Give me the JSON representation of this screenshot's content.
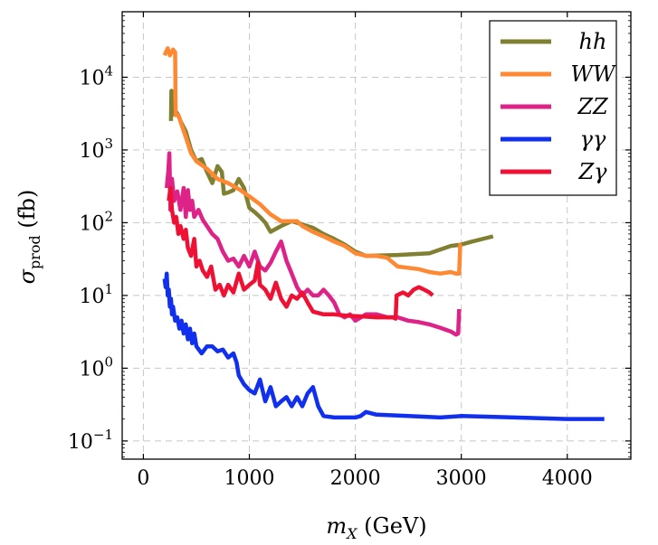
{
  "chart_data": {
    "type": "line",
    "title": "",
    "xlabel": "m_X (GeV)",
    "ylabel": "σ_prod (fb)",
    "xlabel_parts": {
      "var": "m",
      "sub": "X",
      "unit": " (GeV)"
    },
    "ylabel_parts": {
      "var": "σ",
      "sub": "prod",
      "unit": " (fb)"
    },
    "xlim": [
      -200,
      4600
    ],
    "ylim_log10": [
      -1.25,
      4.9
    ],
    "y_scale": "log",
    "grid": true,
    "legend_position": "top-right",
    "x_ticks": [
      {
        "value": 0,
        "label": "0"
      },
      {
        "value": 1000,
        "label": "1000"
      },
      {
        "value": 2000,
        "label": "2000"
      },
      {
        "value": 3000,
        "label": "3000"
      },
      {
        "value": 4000,
        "label": "4000"
      }
    ],
    "y_ticks": [
      {
        "value": -1,
        "base": "10",
        "exp": "−1"
      },
      {
        "value": 0,
        "base": "10",
        "exp": "0"
      },
      {
        "value": 1,
        "base": "10",
        "exp": "1"
      },
      {
        "value": 2,
        "base": "10",
        "exp": "2"
      },
      {
        "value": 3,
        "base": "10",
        "exp": "3"
      },
      {
        "value": 4,
        "base": "10",
        "exp": "4"
      }
    ],
    "series": [
      {
        "name": "hh",
        "color": "#808033",
        "points": [
          [
            260,
            2500
          ],
          [
            265,
            6500
          ],
          [
            270,
            3000
          ],
          [
            300,
            3500
          ],
          [
            330,
            3000
          ],
          [
            350,
            2500
          ],
          [
            400,
            1800
          ],
          [
            450,
            1000
          ],
          [
            500,
            700
          ],
          [
            550,
            750
          ],
          [
            600,
            500
          ],
          [
            650,
            350
          ],
          [
            700,
            600
          ],
          [
            740,
            500
          ],
          [
            760,
            250
          ],
          [
            800,
            260
          ],
          [
            850,
            280
          ],
          [
            900,
            400
          ],
          [
            950,
            300
          ],
          [
            1000,
            160
          ],
          [
            1050,
            140
          ],
          [
            1100,
            120
          ],
          [
            1150,
            100
          ],
          [
            1200,
            75
          ],
          [
            1300,
            90
          ],
          [
            1400,
            105
          ],
          [
            1500,
            95
          ],
          [
            1600,
            85
          ],
          [
            1700,
            70
          ],
          [
            1800,
            60
          ],
          [
            1900,
            50
          ],
          [
            2000,
            40
          ],
          [
            2100,
            35
          ],
          [
            2400,
            36
          ],
          [
            2700,
            38
          ],
          [
            2900,
            48
          ],
          [
            3000,
            50
          ],
          [
            3100,
            55
          ],
          [
            3300,
            65
          ]
        ]
      },
      {
        "name": "WW",
        "color": "#ff8833",
        "points": [
          [
            200,
            20000
          ],
          [
            230,
            25000
          ],
          [
            250,
            20000
          ],
          [
            280,
            24000
          ],
          [
            300,
            22000
          ],
          [
            305,
            3000
          ],
          [
            330,
            3000
          ],
          [
            400,
            1500
          ],
          [
            450,
            900
          ],
          [
            500,
            700
          ],
          [
            600,
            550
          ],
          [
            700,
            400
          ],
          [
            800,
            350
          ],
          [
            900,
            290
          ],
          [
            1000,
            230
          ],
          [
            1100,
            180
          ],
          [
            1200,
            130
          ],
          [
            1300,
            105
          ],
          [
            1450,
            105
          ],
          [
            1500,
            90
          ],
          [
            1600,
            75
          ],
          [
            1700,
            65
          ],
          [
            1800,
            55
          ],
          [
            1900,
            48
          ],
          [
            2000,
            38
          ],
          [
            2100,
            35
          ],
          [
            2200,
            35
          ],
          [
            2300,
            33
          ],
          [
            2400,
            25
          ],
          [
            2500,
            24
          ],
          [
            2600,
            23
          ],
          [
            2700,
            21
          ],
          [
            2800,
            20
          ],
          [
            2900,
            21
          ],
          [
            2950,
            20
          ],
          [
            2980,
            20
          ],
          [
            2990,
            50
          ],
          [
            3000,
            50
          ]
        ]
      },
      {
        "name": "ZZ",
        "color": "#dd2288",
        "points": [
          [
            220,
            300
          ],
          [
            235,
            500
          ],
          [
            245,
            900
          ],
          [
            255,
            150
          ],
          [
            270,
            400
          ],
          [
            290,
            200
          ],
          [
            320,
            270
          ],
          [
            350,
            150
          ],
          [
            380,
            300
          ],
          [
            400,
            120
          ],
          [
            420,
            280
          ],
          [
            440,
            150
          ],
          [
            460,
            200
          ],
          [
            480,
            120
          ],
          [
            520,
            150
          ],
          [
            560,
            110
          ],
          [
            600,
            90
          ],
          [
            650,
            70
          ],
          [
            700,
            60
          ],
          [
            750,
            40
          ],
          [
            800,
            30
          ],
          [
            850,
            32
          ],
          [
            900,
            25
          ],
          [
            950,
            35
          ],
          [
            1000,
            25
          ],
          [
            1050,
            40
          ],
          [
            1100,
            25
          ],
          [
            1150,
            22
          ],
          [
            1200,
            28
          ],
          [
            1250,
            40
          ],
          [
            1300,
            55
          ],
          [
            1350,
            30
          ],
          [
            1400,
            20
          ],
          [
            1450,
            13
          ],
          [
            1500,
            10
          ],
          [
            1550,
            12
          ],
          [
            1600,
            10
          ],
          [
            1650,
            10
          ],
          [
            1700,
            12
          ],
          [
            1750,
            10
          ],
          [
            1800,
            8
          ],
          [
            1850,
            5.5
          ],
          [
            1900,
            5
          ],
          [
            1950,
            5.5
          ],
          [
            2000,
            4.5
          ],
          [
            2100,
            5.5
          ],
          [
            2200,
            5.5
          ],
          [
            2300,
            5
          ],
          [
            2400,
            5
          ],
          [
            2500,
            4.5
          ],
          [
            2600,
            4.3
          ],
          [
            2700,
            4
          ],
          [
            2800,
            3.6
          ],
          [
            2900,
            3.2
          ],
          [
            2950,
            2.9
          ],
          [
            2970,
            3
          ],
          [
            2980,
            6.5
          ]
        ]
      },
      {
        "name": "γγ",
        "color": "#1030ee",
        "points": [
          [
            200,
            17
          ],
          [
            210,
            13
          ],
          [
            220,
            20
          ],
          [
            230,
            10
          ],
          [
            240,
            12
          ],
          [
            250,
            7
          ],
          [
            260,
            9
          ],
          [
            270,
            5.5
          ],
          [
            280,
            7
          ],
          [
            300,
            4.5
          ],
          [
            320,
            5
          ],
          [
            340,
            3.5
          ],
          [
            360,
            4.5
          ],
          [
            380,
            3
          ],
          [
            400,
            4
          ],
          [
            420,
            2.5
          ],
          [
            440,
            3.5
          ],
          [
            460,
            2.2
          ],
          [
            480,
            3
          ],
          [
            500,
            2
          ],
          [
            550,
            1.6
          ],
          [
            600,
            2
          ],
          [
            650,
            2
          ],
          [
            700,
            1.7
          ],
          [
            750,
            1.8
          ],
          [
            800,
            1.4
          ],
          [
            850,
            1.6
          ],
          [
            880,
            1.2
          ],
          [
            900,
            0.8
          ],
          [
            950,
            0.6
          ],
          [
            1000,
            0.5
          ],
          [
            1050,
            0.45
          ],
          [
            1100,
            0.7
          ],
          [
            1150,
            0.35
          ],
          [
            1200,
            0.55
          ],
          [
            1250,
            0.3
          ],
          [
            1300,
            0.35
          ],
          [
            1350,
            0.4
          ],
          [
            1400,
            0.3
          ],
          [
            1450,
            0.4
          ],
          [
            1500,
            0.3
          ],
          [
            1550,
            0.45
          ],
          [
            1600,
            0.55
          ],
          [
            1650,
            0.3
          ],
          [
            1700,
            0.22
          ],
          [
            1800,
            0.21
          ],
          [
            1900,
            0.21
          ],
          [
            2000,
            0.21
          ],
          [
            2050,
            0.22
          ],
          [
            2100,
            0.25
          ],
          [
            2200,
            0.23
          ],
          [
            2500,
            0.22
          ],
          [
            2800,
            0.21
          ],
          [
            3000,
            0.22
          ],
          [
            3500,
            0.21
          ],
          [
            4000,
            0.2
          ],
          [
            4350,
            0.2
          ]
        ]
      },
      {
        "name": "Zγ",
        "color": "#ee1133",
        "points": [
          [
            240,
            200
          ],
          [
            255,
            300
          ],
          [
            270,
            150
          ],
          [
            290,
            100
          ],
          [
            310,
            120
          ],
          [
            330,
            70
          ],
          [
            350,
            90
          ],
          [
            380,
            60
          ],
          [
            400,
            80
          ],
          [
            420,
            45
          ],
          [
            450,
            35
          ],
          [
            480,
            60
          ],
          [
            500,
            25
          ],
          [
            530,
            30
          ],
          [
            560,
            22
          ],
          [
            600,
            18
          ],
          [
            640,
            25
          ],
          [
            680,
            12
          ],
          [
            720,
            14
          ],
          [
            760,
            10
          ],
          [
            800,
            14
          ],
          [
            850,
            11
          ],
          [
            900,
            20
          ],
          [
            950,
            12
          ],
          [
            1000,
            14
          ],
          [
            1050,
            16
          ],
          [
            1080,
            28
          ],
          [
            1100,
            14
          ],
          [
            1150,
            12
          ],
          [
            1200,
            9
          ],
          [
            1250,
            15
          ],
          [
            1300,
            9
          ],
          [
            1350,
            7
          ],
          [
            1400,
            10
          ],
          [
            1450,
            9
          ],
          [
            1500,
            11
          ],
          [
            1550,
            8
          ],
          [
            1600,
            6
          ],
          [
            1700,
            5.5
          ],
          [
            1800,
            5.5
          ],
          [
            1900,
            5.3
          ],
          [
            2000,
            5.2
          ],
          [
            2100,
            5.1
          ],
          [
            2200,
            5
          ],
          [
            2300,
            5
          ],
          [
            2350,
            5
          ],
          [
            2380,
            4.8
          ],
          [
            2390,
            10
          ],
          [
            2450,
            11
          ],
          [
            2500,
            10
          ],
          [
            2550,
            12
          ],
          [
            2600,
            13
          ],
          [
            2650,
            12
          ],
          [
            2700,
            11
          ],
          [
            2730,
            10
          ]
        ]
      }
    ]
  }
}
